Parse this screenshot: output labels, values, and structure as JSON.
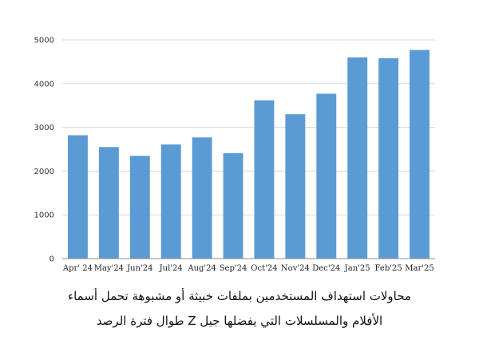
{
  "colors": {
    "bar": "#5b9bd5",
    "grid": "#d9d9d9",
    "axis": "#888888"
  },
  "caption": {
    "line1": "محاولات استهداف المستخدمين بملفات خبيثة أو مشبوهة تحمل أسماء",
    "line2": "الأفلام والمسلسلات التي يفضلها جيل Z طوال فترة الرصد"
  },
  "chart_data": {
    "type": "bar",
    "categories": [
      "Apr' 24",
      "May'24",
      "Jun'24",
      "Jul'24",
      "Aug'24",
      "Sep'24",
      "Oct'24",
      "Nov'24",
      "Dec'24",
      "Jan'25",
      "Feb'25",
      "Mar'25"
    ],
    "values": [
      2820,
      2550,
      2350,
      2610,
      2770,
      2410,
      3620,
      3300,
      3770,
      4600,
      4580,
      4770
    ],
    "ylim": [
      0,
      5000
    ],
    "yticks": [
      0,
      1000,
      2000,
      3000,
      4000,
      5000
    ],
    "grid": true,
    "legend": "none"
  }
}
